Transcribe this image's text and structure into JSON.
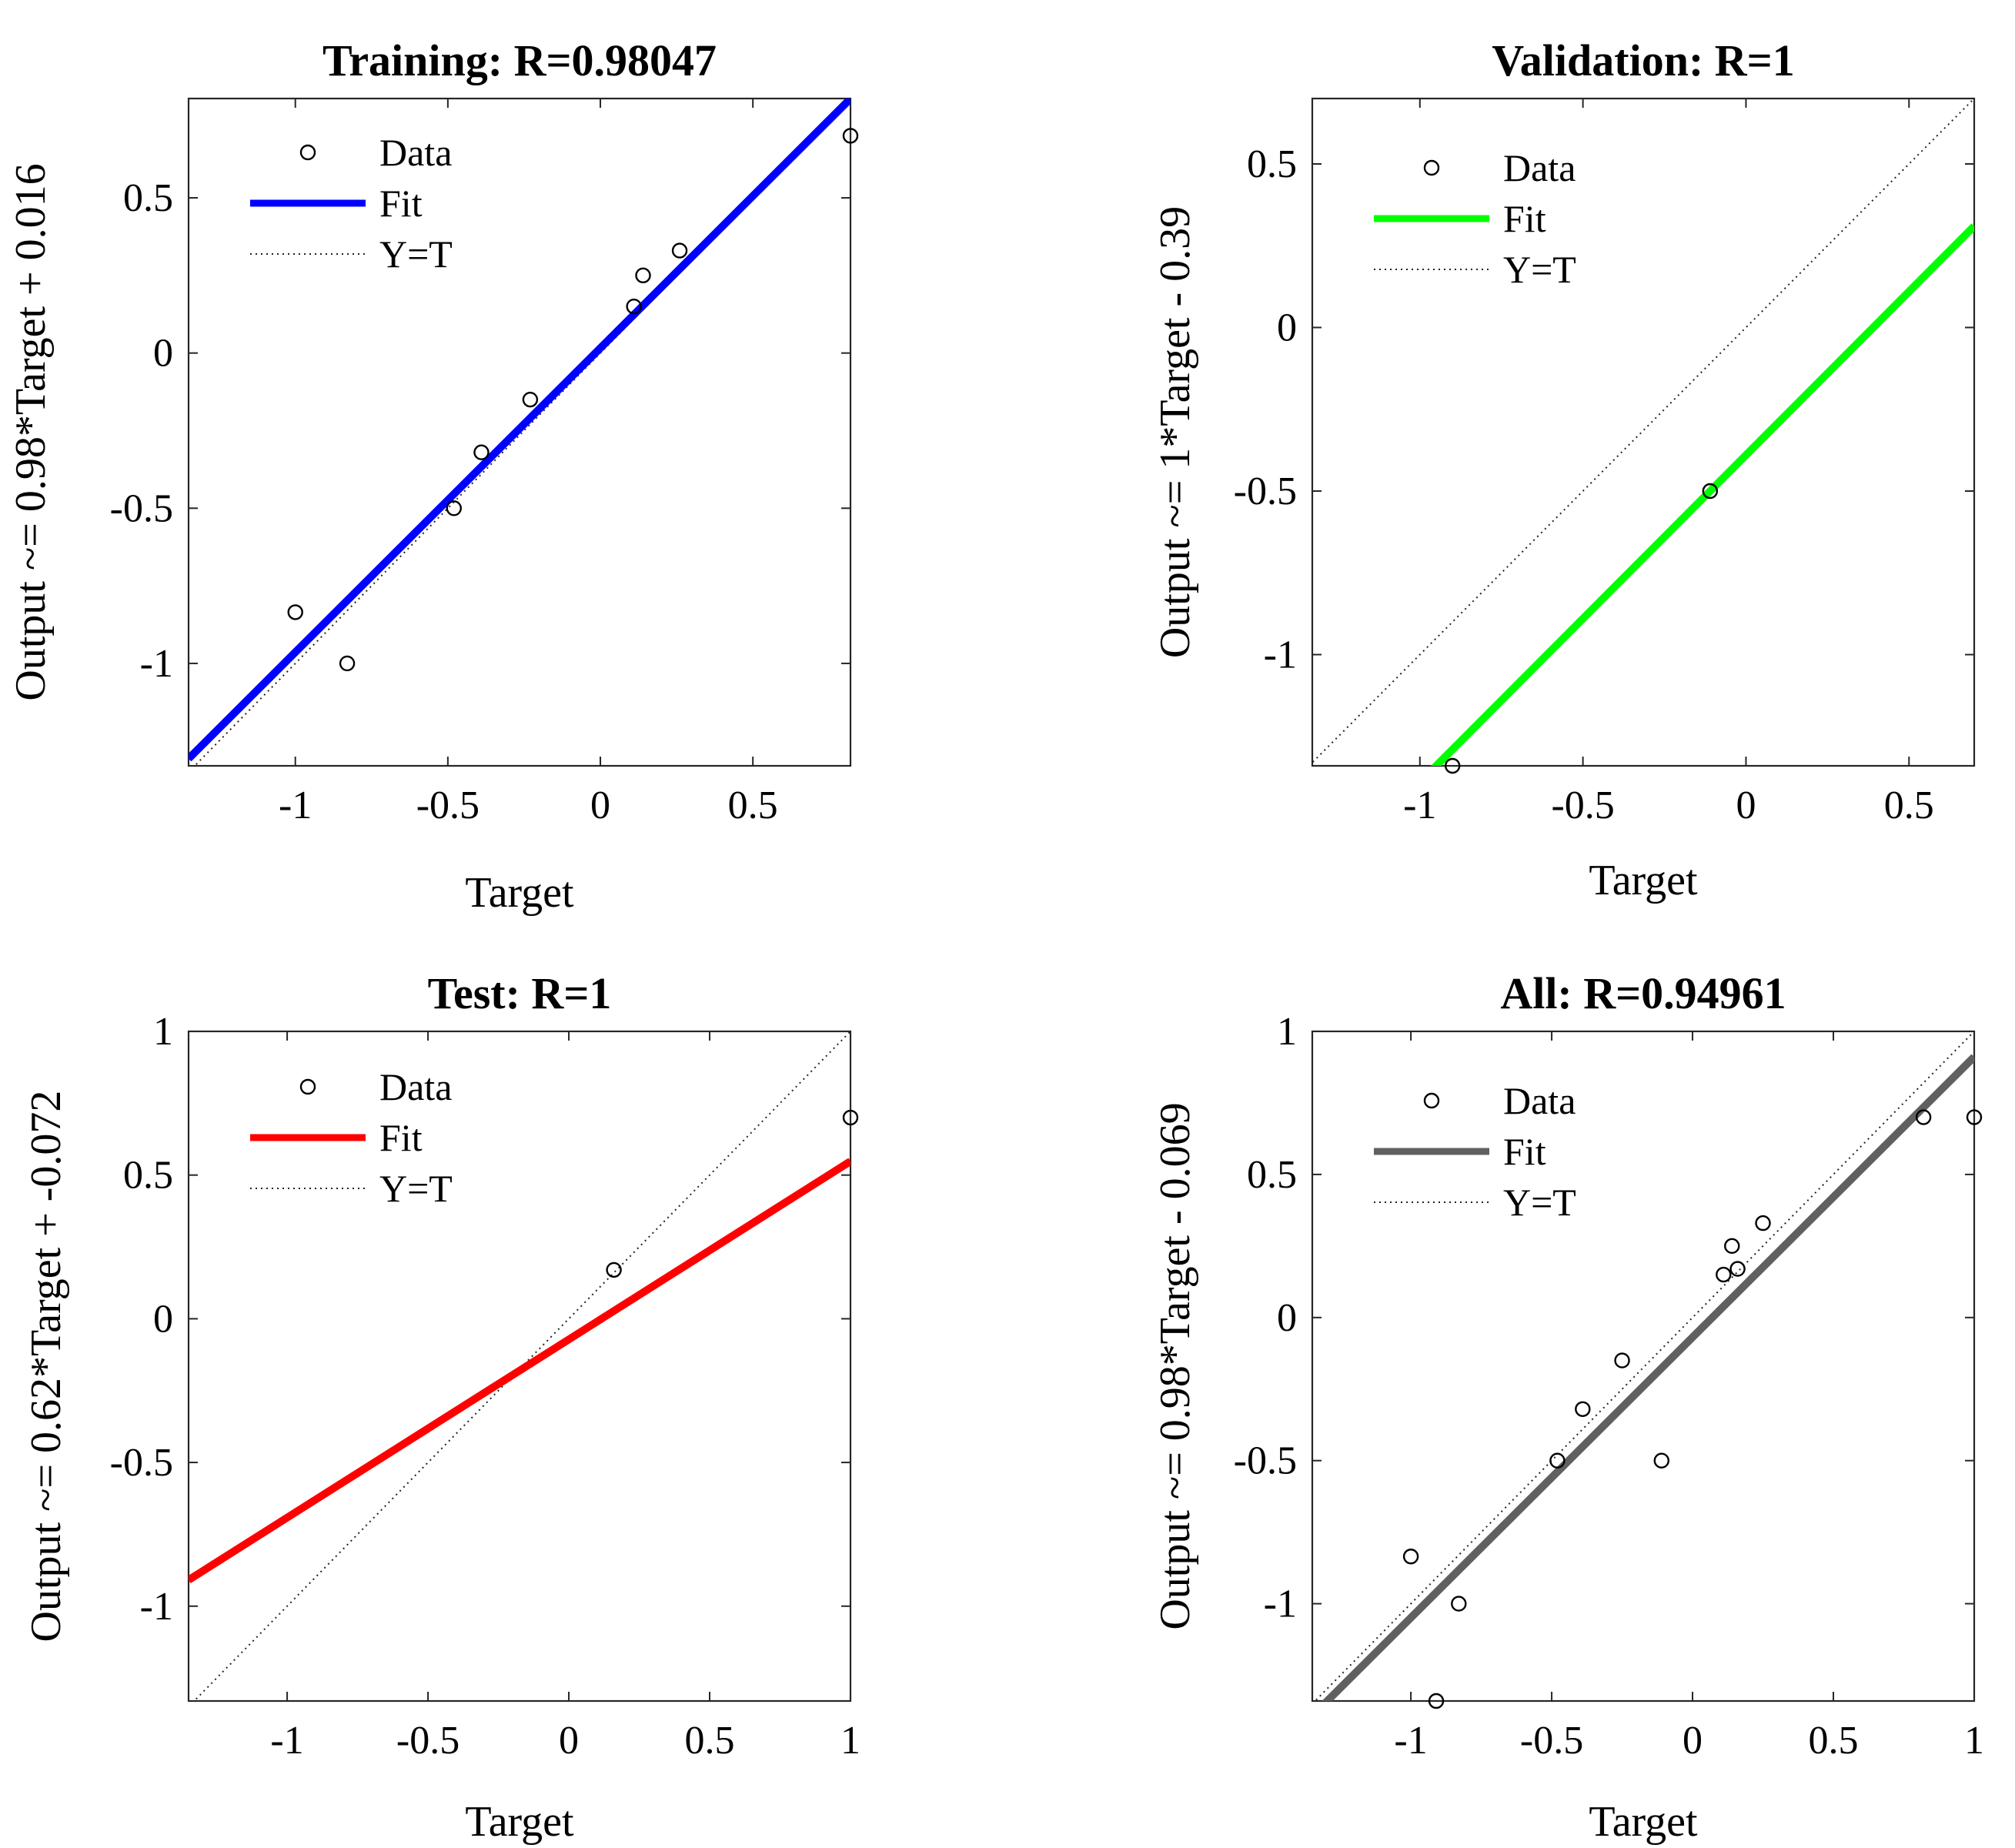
{
  "chart_data": [
    {
      "type": "scatter",
      "title": "Training: R=0.98047",
      "xlabel": "Target",
      "ylabel": "Output ~= 0.98*Target + 0.016",
      "xlim": [
        -1.35,
        0.82
      ],
      "ylim": [
        -1.33,
        0.82
      ],
      "xticks": [
        -1,
        -0.5,
        0,
        0.5
      ],
      "yticks": [
        -1,
        -0.5,
        0,
        0.5
      ],
      "fit": {
        "slope": 0.98,
        "intercept": 0.016,
        "color": "#0000ff"
      },
      "legend": {
        "location": "top-left",
        "labels": [
          "Data",
          "Fit",
          "Y=T"
        ]
      },
      "points": [
        {
          "x": -1.0,
          "y": -0.835
        },
        {
          "x": -0.83,
          "y": -1.0
        },
        {
          "x": -0.48,
          "y": -0.5
        },
        {
          "x": -0.39,
          "y": -0.32
        },
        {
          "x": -0.23,
          "y": -0.15
        },
        {
          "x": 0.11,
          "y": 0.15
        },
        {
          "x": 0.14,
          "y": 0.25
        },
        {
          "x": 0.26,
          "y": 0.33
        },
        {
          "x": 0.82,
          "y": 0.7
        }
      ]
    },
    {
      "type": "scatter",
      "title": "Validation: R=1",
      "xlabel": "Target",
      "ylabel": "Output ~= 1*Target - 0.39",
      "xlim": [
        -1.33,
        0.7
      ],
      "ylim": [
        -1.34,
        0.7
      ],
      "xticks": [
        -1,
        -0.5,
        0,
        0.5
      ],
      "yticks": [
        -1,
        -0.5,
        0,
        0.5
      ],
      "fit": {
        "slope": 1,
        "intercept": -0.39,
        "color": "#00ff00"
      },
      "legend": {
        "location": "top-left",
        "labels": [
          "Data",
          "Fit",
          "Y=T"
        ]
      },
      "points": [
        {
          "x": -0.9,
          "y": -1.34
        },
        {
          "x": -0.11,
          "y": -0.5
        }
      ]
    },
    {
      "type": "scatter",
      "title": "Test: R=1",
      "xlabel": "Target",
      "ylabel": "Output ~= 0.62*Target + -0.072",
      "xlim": [
        -1.35,
        1.0
      ],
      "ylim": [
        -1.33,
        1.0
      ],
      "xticks": [
        -1,
        -0.5,
        0,
        0.5,
        1
      ],
      "yticks": [
        -1,
        -0.5,
        0,
        0.5,
        1
      ],
      "fit": {
        "slope": 0.62,
        "intercept": -0.072,
        "color": "#ff0000"
      },
      "legend": {
        "location": "top-left",
        "labels": [
          "Data",
          "Fit",
          "Y=T"
        ]
      },
      "points": [
        {
          "x": 0.16,
          "y": 0.17
        },
        {
          "x": 1.0,
          "y": 0.7
        }
      ]
    },
    {
      "type": "scatter",
      "title": "All: R=0.94961",
      "xlabel": "Target",
      "ylabel": "Output ~= 0.98*Target - 0.069",
      "xlim": [
        -1.35,
        1.0
      ],
      "ylim": [
        -1.34,
        1.0
      ],
      "xticks": [
        -1,
        -0.5,
        0,
        0.5,
        1
      ],
      "yticks": [
        -1,
        -0.5,
        0,
        0.5,
        1
      ],
      "fit": {
        "slope": 0.98,
        "intercept": -0.069,
        "color": "#606060"
      },
      "legend": {
        "location": "top-left",
        "labels": [
          "Data",
          "Fit",
          "Y=T"
        ]
      },
      "points": [
        {
          "x": -1.0,
          "y": -0.835
        },
        {
          "x": -0.91,
          "y": -1.34
        },
        {
          "x": -0.83,
          "y": -1.0
        },
        {
          "x": -0.48,
          "y": -0.5
        },
        {
          "x": -0.39,
          "y": -0.32
        },
        {
          "x": -0.25,
          "y": -0.15
        },
        {
          "x": -0.11,
          "y": -0.5
        },
        {
          "x": 0.11,
          "y": 0.15
        },
        {
          "x": 0.14,
          "y": 0.25
        },
        {
          "x": 0.16,
          "y": 0.17
        },
        {
          "x": 0.25,
          "y": 0.33
        },
        {
          "x": 0.82,
          "y": 0.7
        },
        {
          "x": 1.0,
          "y": 0.7
        }
      ]
    }
  ]
}
